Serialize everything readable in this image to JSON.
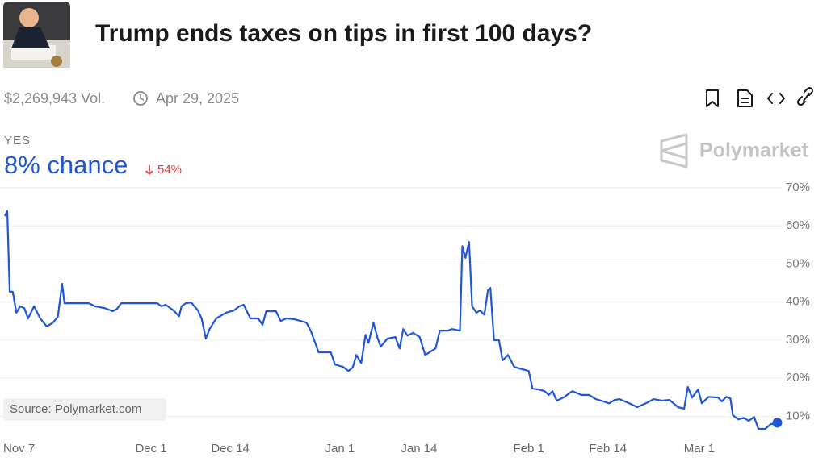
{
  "market": {
    "title": "Trump ends taxes on tips in first 100 days?",
    "volume": "$2,269,943 Vol.",
    "date": "Apr 29, 2025",
    "outcome": "YES",
    "chance": "8% chance",
    "change": "54%"
  },
  "brand": "Polymarket",
  "source": "Source: Polymarket.com",
  "chart_data": {
    "type": "line",
    "color": "#1f57d8",
    "grid": true,
    "x": [
      0,
      0.4,
      0.8,
      1.3,
      1.9,
      2.5,
      3.2,
      3.8,
      4.8,
      5.8,
      6.9,
      7.9,
      8.7,
      9.4,
      9.8,
      13.8,
      14.8,
      16.4,
      17.7,
      18.4,
      19.1,
      25,
      25.7,
      26.4,
      27.7,
      28.6,
      29,
      29.7,
      30.6,
      31.7,
      32.3,
      33,
      33.6,
      34.7,
      36.3,
      37.6,
      38.5,
      39.2,
      40.3,
      41.6,
      42.3,
      42.9,
      44.5,
      45.3,
      46.2,
      47.5,
      49.5,
      50.2,
      51.5,
      53.5,
      54.2,
      55.5,
      56.4,
      57.1,
      57.7,
      58.5,
      59.2,
      59.7,
      60.5,
      61.2,
      61.7,
      62.8,
      64.1,
      64.8,
      65.4,
      66.1,
      67,
      68.1,
      69,
      70.1,
      70.7,
      71.4,
      72.7,
      73.4,
      74.7,
      75.1,
      75.6,
      76.2,
      76.7,
      77.4,
      78,
      78.7,
      79.3,
      79.7,
      80.3,
      81.1,
      81.7,
      82.6,
      83.6,
      84.6,
      86,
      86.6,
      87.7,
      88.6,
      89.3,
      89.9,
      90.6,
      91.9,
      92.6,
      93.2,
      94.6,
      95.9,
      97,
      97.9,
      99.2,
      100.1,
      100.9,
      102.5,
      103.8,
      105.2,
      106.5,
      107.8,
      109.1,
      110.5,
      111.5,
      112.1,
      112.8,
      113.8,
      114.4,
      115.5,
      117.1,
      117.7,
      118.4,
      119.1,
      119.5,
      120.4,
      121.3,
      122.1,
      123,
      123.7,
      124.8,
      125.7,
      126.8
    ],
    "values": [
      62.6,
      63.9,
      42.7,
      42.7,
      37.2,
      38.9,
      38.4,
      35.7,
      38.9,
      35.7,
      33.6,
      34.6,
      36.1,
      44.8,
      39.7,
      39.7,
      38.9,
      38.4,
      37.6,
      38.2,
      39.7,
      39.7,
      38.9,
      39.3,
      37.8,
      36.3,
      38.9,
      39.7,
      39.9,
      37.8,
      35.7,
      30.4,
      32.9,
      35.7,
      37.2,
      37.8,
      38.9,
      39.3,
      35.7,
      35.7,
      34,
      37.6,
      37.6,
      35,
      35.7,
      35.5,
      34.6,
      32.5,
      26.8,
      26.8,
      23.6,
      23,
      21.9,
      22.8,
      26.1,
      24,
      31.4,
      29.3,
      34.6,
      30.4,
      28.3,
      30.4,
      30.8,
      27.8,
      32.9,
      31.2,
      31.9,
      30.8,
      26.1,
      27.2,
      27.8,
      32.5,
      32.5,
      32.9,
      32.5,
      54.7,
      51.6,
      55.8,
      38.9,
      37.2,
      37.8,
      36.7,
      43.1,
      43.7,
      30,
      30,
      24.7,
      26.1,
      23,
      22.5,
      21.9,
      17.3,
      17,
      16.6,
      15.6,
      16.6,
      14.1,
      15.1,
      16,
      16.6,
      15.6,
      15.6,
      14.5,
      14.1,
      13.4,
      14.3,
      14.5,
      13.4,
      12.4,
      13.4,
      14.5,
      14.1,
      14.3,
      12.4,
      12,
      17.7,
      14.9,
      17,
      13.4,
      15.1,
      14.9,
      13.9,
      15.1,
      14.7,
      10.3,
      9.2,
      9.6,
      8.8,
      9.8,
      6.7,
      6.7,
      7.9,
      8.3
    ],
    "xlim": [
      0,
      127
    ],
    "xticks": [
      {
        "value": 0,
        "label": "Nov 7"
      },
      {
        "value": 24,
        "label": "Dec 1"
      },
      {
        "value": 37,
        "label": "Dec 14"
      },
      {
        "value": 55,
        "label": "Jan 1"
      },
      {
        "value": 68,
        "label": "Jan 14"
      },
      {
        "value": 86,
        "label": "Feb 1"
      },
      {
        "value": 99,
        "label": "Feb 14"
      },
      {
        "value": 114,
        "label": "Mar 1"
      }
    ],
    "ylim": [
      5,
      70
    ],
    "yticks": [
      {
        "value": 10,
        "label": "10%"
      },
      {
        "value": 20,
        "label": "20%"
      },
      {
        "value": 30,
        "label": "30%"
      },
      {
        "value": 40,
        "label": "40%"
      },
      {
        "value": 50,
        "label": "50%"
      },
      {
        "value": 60,
        "label": "60%"
      },
      {
        "value": 70,
        "label": "70%"
      }
    ]
  }
}
